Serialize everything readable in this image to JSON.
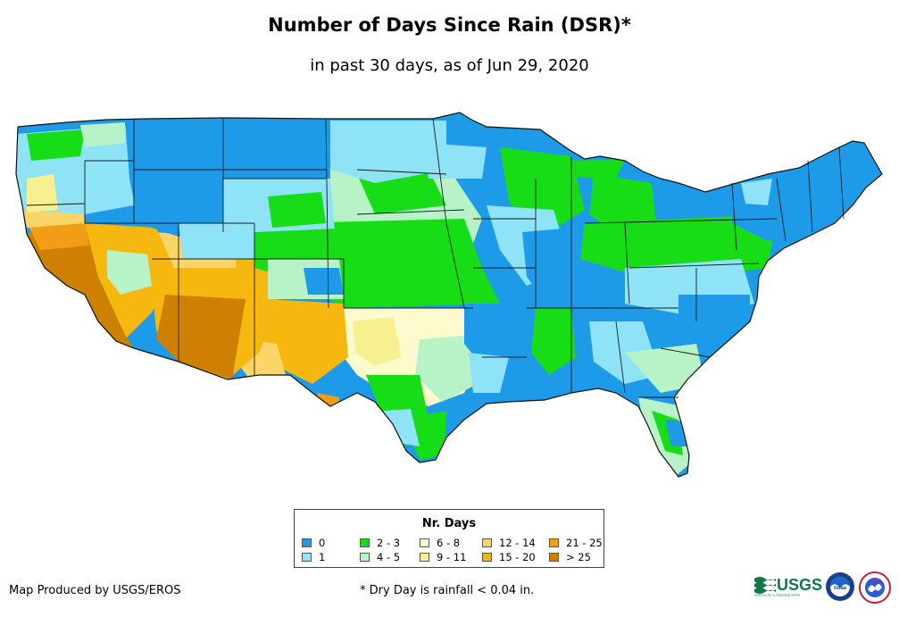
{
  "title": "Number of Days Since Rain (DSR)*",
  "subtitle": "in past 30 days, as of Jun 29, 2020",
  "legend": {
    "title": "Nr. Days",
    "items": [
      {
        "label": "0",
        "color": "#1e9be8"
      },
      {
        "label": "1",
        "color": "#8ee4f6"
      },
      {
        "label": "2 - 3",
        "color": "#17dd17"
      },
      {
        "label": "4 - 5",
        "color": "#b7f3c6"
      },
      {
        "label": "6 - 8",
        "color": "#fbfbce"
      },
      {
        "label": "9 - 11",
        "color": "#f8ef8e"
      },
      {
        "label": "12 - 14",
        "color": "#fad66a"
      },
      {
        "label": "15 - 20",
        "color": "#f6b80e"
      },
      {
        "label": "21 - 25",
        "color": "#f29d16"
      },
      {
        "label": "> 25",
        "color": "#cd8002"
      }
    ]
  },
  "footer": {
    "credit": "Map Produced by USGS/EROS",
    "note": "* Dry Day is rainfall < 0.04 in."
  },
  "logos": {
    "usgs_text": "USGS",
    "usgs_tagline": "science for a changing world",
    "noaa_text": "noaa",
    "nws_text": "NWS"
  }
}
